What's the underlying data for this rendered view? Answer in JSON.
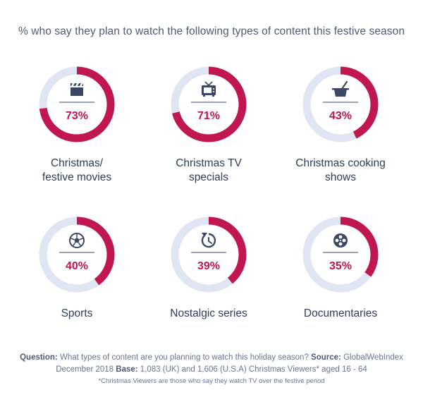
{
  "title": "% who say they plan to watch the following types of content this festive season",
  "colors": {
    "accent": "#c0174f",
    "track": "#dfe5f2",
    "icon": "#3a4865",
    "divider": "#3a4865"
  },
  "chart_data": {
    "type": "donut",
    "title": "% who say they plan to watch the following types of content this festive season",
    "unit": "%",
    "items": [
      {
        "label": "Christmas/\nfestive movies",
        "value": 73,
        "display": "73%",
        "icon": "clapperboard-icon"
      },
      {
        "label": "Christmas TV\nspecials",
        "value": 71,
        "display": "71%",
        "icon": "tv-icon"
      },
      {
        "label": "Christmas cooking\nshows",
        "value": 43,
        "display": "43%",
        "icon": "cooking-pot-icon"
      },
      {
        "label": "Sports",
        "value": 40,
        "display": "40%",
        "icon": "football-icon"
      },
      {
        "label": "Nostalgic series",
        "value": 39,
        "display": "39%",
        "icon": "rewind-clock-icon"
      },
      {
        "label": "Documentaries",
        "value": 35,
        "display": "35%",
        "icon": "film-reel-icon"
      }
    ]
  },
  "footer": {
    "question_label": "Question:",
    "question_text": " What types of content are you planning to watch this holiday season? ",
    "source_label": "Source:",
    "source_text": " GlobalWebIndex December 2018 ",
    "base_label": "Base:",
    "base_text": " 1,083 (UK) and 1,606 (U.S.A) Christmas Viewers* aged 16 - 64",
    "note": "*Christmas Viewers are those who say they watch TV over the festive period"
  }
}
